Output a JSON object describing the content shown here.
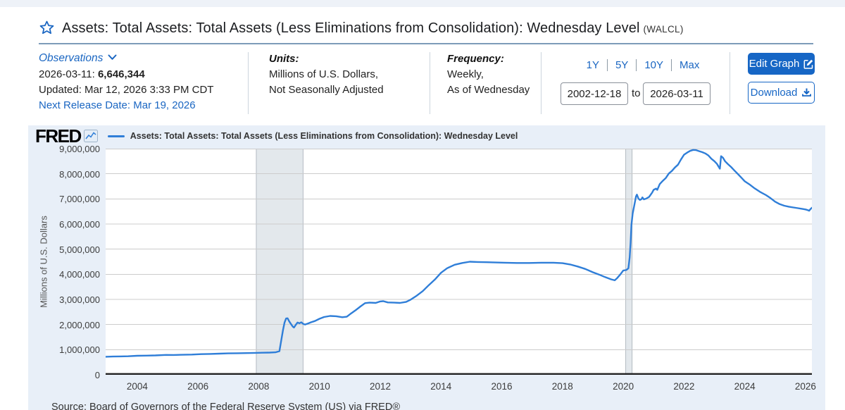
{
  "header": {
    "title": "Assets: Total Assets: Total Assets (Less Eliminations from Consolidation): Wednesday Level",
    "title_suffix": "(WALCL)"
  },
  "meta": {
    "observations_label": "Observations",
    "latest_date_label": "2026-03-11:",
    "latest_value": "6,646,344",
    "updated": "Updated: Mar 12, 2026 3:33 PM CDT",
    "next_release": "Next Release Date: Mar 19, 2026",
    "units_label": "Units:",
    "units_line1": "Millions of U.S. Dollars,",
    "units_line2": "Not Seasonally Adjusted",
    "frequency_label": "Frequency:",
    "frequency_line1": "Weekly,",
    "frequency_line2": "As of Wednesday"
  },
  "controls": {
    "ranges": [
      "1Y",
      "5Y",
      "10Y",
      "Max"
    ],
    "date_from": "2002-12-18",
    "to_label": "to",
    "date_to": "2026-03-11",
    "edit_graph_label": "Edit Graph",
    "download_label": "Download"
  },
  "colors": {
    "accent_blue": "#1666c5",
    "link_blue": "#1a66c2",
    "line_blue": "#2f7ed8",
    "recession_band": "#e3e8ec",
    "recession_band_edge": "#b3bac2",
    "grid": "#cccccc",
    "axis": "#222222"
  },
  "chart": {
    "logo_text": "FRED",
    "legend_label": "Assets: Total Assets: Total Assets (Less Eliminations from Consolidation): Wednesday Level",
    "source": "Source: Board of Governors of the Federal Reserve System (US) via FRED®"
  },
  "chart_data": {
    "type": "line",
    "title": "Assets: Total Assets: Total Assets (Less Eliminations from Consolidation): Wednesday Level",
    "ylabel": "Millions of U.S. Dollars",
    "xlabel": "",
    "ylim": [
      0,
      9000000
    ],
    "xlim": [
      2002.96,
      2026.21
    ],
    "grid": "horizontal",
    "legend_position": "top",
    "y_ticks": [
      "0",
      "1,000,000",
      "2,000,000",
      "3,000,000",
      "4,000,000",
      "5,000,000",
      "6,000,000",
      "7,000,000",
      "8,000,000",
      "9,000,000"
    ],
    "x_ticks": [
      "2004",
      "2006",
      "2008",
      "2010",
      "2012",
      "2014",
      "2016",
      "2018",
      "2020",
      "2022",
      "2024",
      "2026"
    ],
    "recession_bands": [
      [
        2007.92,
        2009.46
      ],
      [
        2020.08,
        2020.29
      ]
    ],
    "series": [
      {
        "name": "WALCL",
        "points": [
          [
            2002.96,
            719000
          ],
          [
            2003.2,
            726000
          ],
          [
            2003.45,
            733000
          ],
          [
            2003.7,
            738000
          ],
          [
            2004.0,
            757000
          ],
          [
            2004.3,
            762000
          ],
          [
            2004.6,
            771000
          ],
          [
            2004.95,
            790000
          ],
          [
            2005.2,
            787000
          ],
          [
            2005.5,
            795000
          ],
          [
            2005.8,
            806000
          ],
          [
            2006.1,
            822000
          ],
          [
            2006.4,
            830000
          ],
          [
            2006.7,
            840000
          ],
          [
            2007.0,
            852000
          ],
          [
            2007.3,
            858000
          ],
          [
            2007.6,
            864000
          ],
          [
            2007.9,
            873000
          ],
          [
            2008.1,
            878000
          ],
          [
            2008.35,
            884000
          ],
          [
            2008.55,
            894000
          ],
          [
            2008.68,
            940000
          ],
          [
            2008.74,
            1350000
          ],
          [
            2008.8,
            1780000
          ],
          [
            2008.85,
            2080000
          ],
          [
            2008.9,
            2240000
          ],
          [
            2008.95,
            2250000
          ],
          [
            2009.0,
            2130000
          ],
          [
            2009.05,
            2040000
          ],
          [
            2009.12,
            1920000
          ],
          [
            2009.16,
            1880000
          ],
          [
            2009.22,
            1990000
          ],
          [
            2009.28,
            2080000
          ],
          [
            2009.34,
            2050000
          ],
          [
            2009.4,
            2090000
          ],
          [
            2009.46,
            2030000
          ],
          [
            2009.52,
            2000000
          ],
          [
            2009.62,
            2040000
          ],
          [
            2009.72,
            2090000
          ],
          [
            2009.85,
            2140000
          ],
          [
            2010.0,
            2230000
          ],
          [
            2010.15,
            2300000
          ],
          [
            2010.35,
            2340000
          ],
          [
            2010.55,
            2330000
          ],
          [
            2010.75,
            2290000
          ],
          [
            2010.9,
            2310000
          ],
          [
            2011.05,
            2450000
          ],
          [
            2011.2,
            2580000
          ],
          [
            2011.35,
            2720000
          ],
          [
            2011.5,
            2850000
          ],
          [
            2011.65,
            2870000
          ],
          [
            2011.85,
            2860000
          ],
          [
            2012.0,
            2920000
          ],
          [
            2012.1,
            2930000
          ],
          [
            2012.25,
            2880000
          ],
          [
            2012.45,
            2870000
          ],
          [
            2012.65,
            2860000
          ],
          [
            2012.85,
            2900000
          ],
          [
            2013.0,
            2990000
          ],
          [
            2013.2,
            3150000
          ],
          [
            2013.4,
            3330000
          ],
          [
            2013.6,
            3570000
          ],
          [
            2013.8,
            3790000
          ],
          [
            2014.0,
            4060000
          ],
          [
            2014.2,
            4240000
          ],
          [
            2014.45,
            4380000
          ],
          [
            2014.7,
            4450000
          ],
          [
            2014.95,
            4500000
          ],
          [
            2015.2,
            4490000
          ],
          [
            2015.5,
            4480000
          ],
          [
            2015.8,
            4470000
          ],
          [
            2016.1,
            4460000
          ],
          [
            2016.5,
            4450000
          ],
          [
            2016.9,
            4450000
          ],
          [
            2017.3,
            4460000
          ],
          [
            2017.7,
            4460000
          ],
          [
            2018.0,
            4440000
          ],
          [
            2018.25,
            4390000
          ],
          [
            2018.5,
            4310000
          ],
          [
            2018.75,
            4210000
          ],
          [
            2019.0,
            4080000
          ],
          [
            2019.2,
            3990000
          ],
          [
            2019.4,
            3890000
          ],
          [
            2019.6,
            3800000
          ],
          [
            2019.72,
            3760000
          ],
          [
            2019.8,
            3850000
          ],
          [
            2019.9,
            3990000
          ],
          [
            2020.0,
            4150000
          ],
          [
            2020.1,
            4170000
          ],
          [
            2020.17,
            4240000
          ],
          [
            2020.21,
            4670000
          ],
          [
            2020.24,
            5250000
          ],
          [
            2020.27,
            5960000
          ],
          [
            2020.31,
            6420000
          ],
          [
            2020.36,
            6720000
          ],
          [
            2020.42,
            7100000
          ],
          [
            2020.45,
            7170000
          ],
          [
            2020.5,
            7010000
          ],
          [
            2020.55,
            6960000
          ],
          [
            2020.6,
            6990000
          ],
          [
            2020.63,
            7060000
          ],
          [
            2020.68,
            6980000
          ],
          [
            2020.75,
            7010000
          ],
          [
            2020.85,
            7080000
          ],
          [
            2020.95,
            7250000
          ],
          [
            2021.0,
            7360000
          ],
          [
            2021.08,
            7410000
          ],
          [
            2021.12,
            7360000
          ],
          [
            2021.2,
            7590000
          ],
          [
            2021.3,
            7720000
          ],
          [
            2021.4,
            7830000
          ],
          [
            2021.5,
            8010000
          ],
          [
            2021.6,
            8110000
          ],
          [
            2021.7,
            8250000
          ],
          [
            2021.8,
            8360000
          ],
          [
            2021.9,
            8570000
          ],
          [
            2022.0,
            8760000
          ],
          [
            2022.1,
            8840000
          ],
          [
            2022.2,
            8910000
          ],
          [
            2022.3,
            8950000
          ],
          [
            2022.4,
            8940000
          ],
          [
            2022.5,
            8900000
          ],
          [
            2022.6,
            8860000
          ],
          [
            2022.7,
            8810000
          ],
          [
            2022.8,
            8730000
          ],
          [
            2022.9,
            8600000
          ],
          [
            2023.0,
            8500000
          ],
          [
            2023.08,
            8400000
          ],
          [
            2023.14,
            8280000
          ],
          [
            2023.18,
            8200000
          ],
          [
            2023.22,
            8700000
          ],
          [
            2023.28,
            8640000
          ],
          [
            2023.35,
            8500000
          ],
          [
            2023.45,
            8380000
          ],
          [
            2023.55,
            8270000
          ],
          [
            2023.65,
            8140000
          ],
          [
            2023.78,
            7980000
          ],
          [
            2023.9,
            7830000
          ],
          [
            2024.0,
            7700000
          ],
          [
            2024.15,
            7580000
          ],
          [
            2024.3,
            7440000
          ],
          [
            2024.5,
            7280000
          ],
          [
            2024.7,
            7150000
          ],
          [
            2024.85,
            7030000
          ],
          [
            2025.0,
            6890000
          ],
          [
            2025.15,
            6790000
          ],
          [
            2025.3,
            6730000
          ],
          [
            2025.45,
            6690000
          ],
          [
            2025.6,
            6660000
          ],
          [
            2025.75,
            6630000
          ],
          [
            2025.9,
            6600000
          ],
          [
            2026.0,
            6580000
          ],
          [
            2026.08,
            6550000
          ],
          [
            2026.12,
            6530000
          ],
          [
            2026.16,
            6590000
          ],
          [
            2026.21,
            6646344
          ]
        ]
      }
    ]
  }
}
